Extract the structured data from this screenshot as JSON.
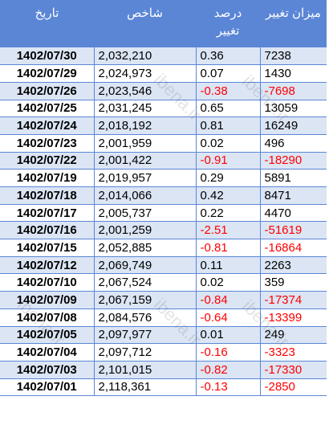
{
  "headers": {
    "date": "تاریخ",
    "index": "شاخص",
    "percent_line1": "درصد",
    "percent_line2": "تغییر",
    "change": "میزان تغییر"
  },
  "watermark": "ibena.ir",
  "colors": {
    "header_bg": "#5b86d6",
    "stripe": "#dbe5f4",
    "negative": "#ff0000"
  },
  "rows": [
    {
      "date": "1402/07/30",
      "index": "2,032,210",
      "percent": "0.36",
      "change": "7238",
      "negative": false
    },
    {
      "date": "1402/07/29",
      "index": "2,024,973",
      "percent": "0.07",
      "change": "1430",
      "negative": false
    },
    {
      "date": "1402/07/26",
      "index": "2,023,546",
      "percent": "-0.38",
      "change": "-7698",
      "negative": true
    },
    {
      "date": "1402/07/25",
      "index": "2,031,245",
      "percent": "0.65",
      "change": "13059",
      "negative": false
    },
    {
      "date": "1402/07/24",
      "index": "2,018,192",
      "percent": "0.81",
      "change": "16249",
      "negative": false
    },
    {
      "date": "1402/07/23",
      "index": "2,001,959",
      "percent": "0.02",
      "change": "496",
      "negative": false
    },
    {
      "date": "1402/07/22",
      "index": "2,001,422",
      "percent": "-0.91",
      "change": "-18290",
      "negative": true
    },
    {
      "date": "1402/07/19",
      "index": "2,019,957",
      "percent": "0.29",
      "change": "5891",
      "negative": false
    },
    {
      "date": "1402/07/18",
      "index": "2,014,066",
      "percent": "0.42",
      "change": "8471",
      "negative": false
    },
    {
      "date": "1402/07/17",
      "index": "2,005,737",
      "percent": "0.22",
      "change": "4470",
      "negative": false
    },
    {
      "date": "1402/07/16",
      "index": "2,001,259",
      "percent": "-2.51",
      "change": "-51619",
      "negative": true
    },
    {
      "date": "1402/07/15",
      "index": "2,052,885",
      "percent": "-0.81",
      "change": "-16864",
      "negative": true
    },
    {
      "date": "1402/07/12",
      "index": "2,069,749",
      "percent": "0.11",
      "change": "2263",
      "negative": false
    },
    {
      "date": "1402/07/10",
      "index": "2,067,524",
      "percent": "0.02",
      "change": "359",
      "negative": false
    },
    {
      "date": "1402/07/09",
      "index": "2,067,159",
      "percent": "-0.84",
      "change": "-17374",
      "negative": true
    },
    {
      "date": "1402/07/08",
      "index": "2,084,576",
      "percent": "-0.64",
      "change": "-13399",
      "negative": true
    },
    {
      "date": "1402/07/05",
      "index": "2,097,977",
      "percent": "0.01",
      "change": "249",
      "negative": false
    },
    {
      "date": "1402/07/04",
      "index": "2,097,712",
      "percent": "-0.16",
      "change": "-3323",
      "negative": true
    },
    {
      "date": "1402/07/03",
      "index": "2,101,015",
      "percent": "-0.82",
      "change": "-17330",
      "negative": true
    },
    {
      "date": "1402/07/01",
      "index": "2,118,361",
      "percent": "-0.13",
      "change": "-2850",
      "negative": true
    }
  ]
}
